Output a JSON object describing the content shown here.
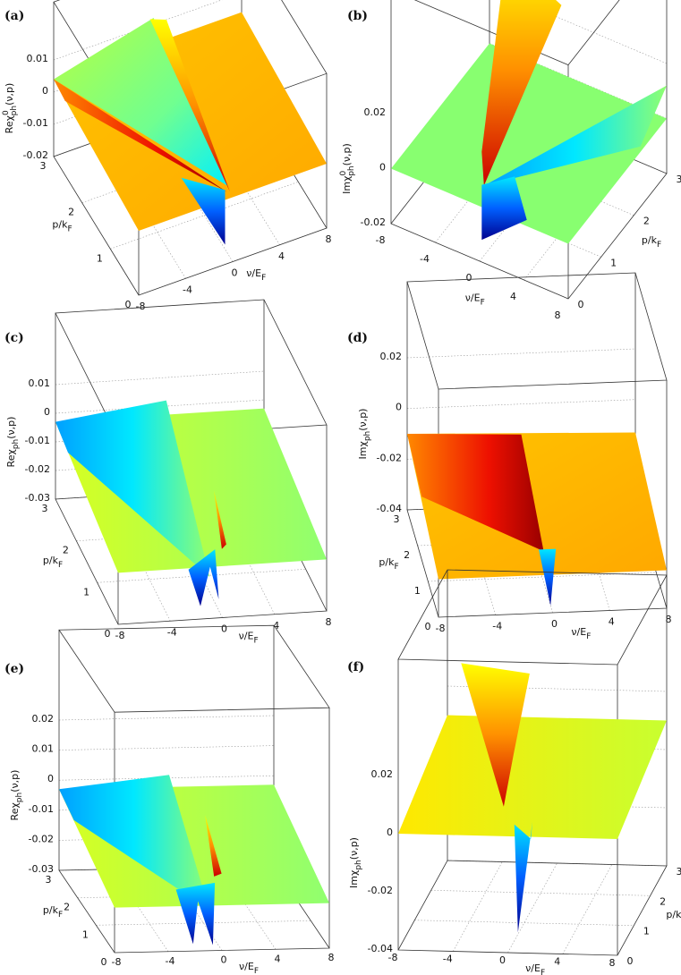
{
  "chart_data": [
    {
      "id": "a",
      "type": "surface",
      "panel_label": "(a)",
      "colormap": "jet",
      "zlabel": {
        "base": "Reχ",
        "sup": "0",
        "sub": "ph",
        "tail": "(ν,p)"
      },
      "xlabel": {
        "base": "ν/E",
        "sub": "F"
      },
      "ylabel": {
        "base": "p/k",
        "sub": "F"
      },
      "xticks": [
        "-8",
        "-4",
        "0",
        "4",
        "8"
      ],
      "yticks": [
        "0",
        "1",
        "2",
        "3"
      ],
      "zticks": [
        "0.01",
        "0",
        "-0.01",
        "-0.02"
      ],
      "xlim": [
        -8,
        8
      ],
      "ylim": [
        0,
        3
      ],
      "zlim": [
        -0.02,
        0.01
      ],
      "grid": true
    },
    {
      "id": "b",
      "type": "surface",
      "panel_label": "(b)",
      "colormap": "jet",
      "zlabel": {
        "base": "Imχ",
        "sup": "0",
        "sub": "ph",
        "tail": "(ν,p)"
      },
      "xlabel": {
        "base": "ν/E",
        "sub": "F"
      },
      "ylabel": {
        "base": "p/k",
        "sub": "F"
      },
      "xticks": [
        "-8",
        "-4",
        "0",
        "4",
        "8"
      ],
      "yticks": [
        "0",
        "1",
        "2",
        "3"
      ],
      "zticks": [
        "0.02",
        "0",
        "-0.02"
      ],
      "xlim": [
        -8,
        8
      ],
      "ylim": [
        0,
        3
      ],
      "zlim": [
        -0.02,
        0.02
      ],
      "grid": true
    },
    {
      "id": "c",
      "type": "surface",
      "panel_label": "(c)",
      "colormap": "jet",
      "zlabel": {
        "base": "Reχ",
        "sup": "",
        "sub": "ph",
        "tail": "(ν,p)"
      },
      "xlabel": {
        "base": "ν/E",
        "sub": "F"
      },
      "ylabel": {
        "base": "p/k",
        "sub": "F"
      },
      "xticks": [
        "-8",
        "-4",
        "0",
        "4",
        "8"
      ],
      "yticks": [
        "0",
        "1",
        "2",
        "3"
      ],
      "zticks": [
        "0.01",
        "0",
        "-0.01",
        "-0.02",
        "-0.03"
      ],
      "xlim": [
        -8,
        8
      ],
      "ylim": [
        0,
        3
      ],
      "zlim": [
        -0.03,
        0.01
      ],
      "grid": true
    },
    {
      "id": "d",
      "type": "surface",
      "panel_label": "(d)",
      "colormap": "jet",
      "zlabel": {
        "base": "Imχ",
        "sup": "",
        "sub": "ph",
        "tail": "(ν,p)"
      },
      "xlabel": {
        "base": "ν/E",
        "sub": "F"
      },
      "ylabel": {
        "base": "p/k",
        "sub": "F"
      },
      "xticks": [
        "-8",
        "-4",
        "0",
        "4",
        "8"
      ],
      "yticks": [
        "0",
        "1",
        "2",
        "3"
      ],
      "zticks": [
        "0.02",
        "0",
        "-0.02",
        "-0.04"
      ],
      "xlim": [
        -8,
        8
      ],
      "ylim": [
        0,
        3
      ],
      "zlim": [
        -0.04,
        0.02
      ],
      "grid": true
    },
    {
      "id": "e",
      "type": "surface",
      "panel_label": "(e)",
      "colormap": "jet",
      "zlabel": {
        "base": "Reχ",
        "sup": "",
        "sub": "ph",
        "tail": "(ν,p)"
      },
      "xlabel": {
        "base": "ν/E",
        "sub": "F"
      },
      "ylabel": {
        "base": "p/k",
        "sub": "F"
      },
      "xticks": [
        "-8",
        "-4",
        "0",
        "4",
        "8"
      ],
      "yticks": [
        "0",
        "1",
        "2",
        "3"
      ],
      "zticks": [
        "0.02",
        "0.01",
        "0",
        "-0.01",
        "-0.02",
        "-0.03"
      ],
      "xlim": [
        -8,
        8
      ],
      "ylim": [
        0,
        3
      ],
      "zlim": [
        -0.03,
        0.02
      ],
      "grid": true
    },
    {
      "id": "f",
      "type": "surface",
      "panel_label": "(f)",
      "colormap": "jet",
      "zlabel": {
        "base": "Imχ",
        "sup": "",
        "sub": "ph",
        "tail": "(ν,p)"
      },
      "xlabel": {
        "base": "ν/E",
        "sub": "F"
      },
      "ylabel": {
        "base": "p/k",
        "sub": "F"
      },
      "xticks": [
        "-8",
        "-4",
        "0",
        "4",
        "8"
      ],
      "yticks": [
        "0",
        "1",
        "2",
        "3"
      ],
      "zticks": [
        "0.02",
        "0",
        "-0.02",
        "-0.04"
      ],
      "xlim": [
        -8,
        8
      ],
      "ylim": [
        0,
        3
      ],
      "zlim": [
        -0.04,
        0.02
      ],
      "grid": true
    }
  ]
}
